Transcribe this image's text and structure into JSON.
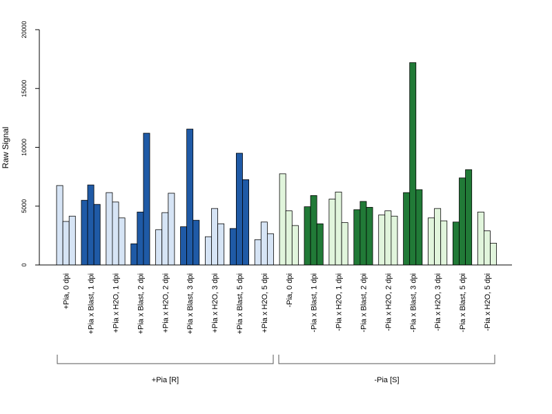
{
  "chart_data": {
    "type": "bar",
    "ylabel": "Raw Signal",
    "ylim": [
      0,
      20000
    ],
    "yticks": [
      0,
      5000,
      10000,
      15000,
      20000
    ],
    "colors": {
      "plus_light": "#d6e4f5",
      "plus_dark": "#1f5aa6",
      "minus_light": "#e1f5dc",
      "minus_dark": "#217a37",
      "stroke": "#000000",
      "axis": "#000000",
      "bracket": "#555555"
    },
    "categories": [
      "+Pia, 0 dpi",
      "+Pia x Blast, 1 dpi",
      "+Pia x H2O, 1 dpi",
      "+Pia x Blast, 2 dpi",
      "+Pia x H2O, 2 dpi",
      "+Pia x Blast, 3 dpi",
      "+Pia x H2O, 3 dpi",
      "+Pia x Blast, 5 dpi",
      "+Pia x H2O, 5 dpi",
      "-Pia, 0 dpi",
      "-Pia x Blast, 1 dpi",
      "-Pia x H2O, 1 dpi",
      "-Pia x Blast, 2 dpi",
      "-Pia x H2O, 2 dpi",
      "-Pia x Blast, 3 dpi",
      "-Pia x H2O, 3 dpi",
      "-Pia x Blast, 5 dpi",
      "-Pia x H2O, 5 dpi"
    ],
    "groups": [
      {
        "label": "+Pia [R]",
        "from": 0,
        "to": 8
      },
      {
        "label": "-Pia [S]",
        "from": 9,
        "to": 17
      }
    ],
    "replicates": [
      [
        6750,
        3700,
        4150
      ],
      [
        5500,
        6800,
        5150
      ],
      [
        6150,
        5350,
        4000
      ],
      [
        1800,
        4500,
        11200
      ],
      [
        3000,
        4450,
        6100
      ],
      [
        3250,
        11550,
        3800
      ],
      [
        2400,
        4800,
        3500
      ],
      [
        3100,
        9500,
        7250
      ],
      [
        2150,
        3650,
        2650
      ],
      [
        7750,
        4600,
        3350
      ],
      [
        4950,
        5900,
        3500
      ],
      [
        5600,
        6200,
        3600
      ],
      [
        4700,
        5400,
        4900
      ],
      [
        4250,
        4600,
        4150
      ],
      [
        6150,
        17200,
        6400
      ],
      [
        4000,
        4800,
        3750
      ],
      [
        3650,
        7400,
        8100
      ],
      [
        4500,
        2900,
        1850
      ]
    ],
    "category_color": [
      "plus_light",
      "plus_dark",
      "plus_light",
      "plus_dark",
      "plus_light",
      "plus_dark",
      "plus_light",
      "plus_dark",
      "plus_light",
      "minus_light",
      "minus_dark",
      "minus_light",
      "minus_dark",
      "minus_light",
      "minus_dark",
      "minus_light",
      "minus_dark",
      "minus_light"
    ]
  }
}
